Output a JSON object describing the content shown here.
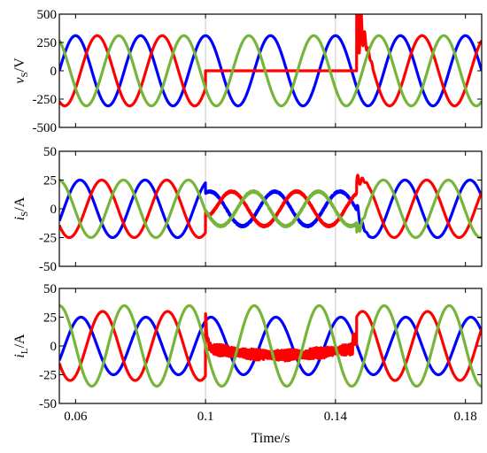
{
  "chart_data": [
    {
      "type": "line",
      "ylabel": "vS/V",
      "ylabel_main": "v",
      "ylabel_sub": "S",
      "ylabel_unit": "/V",
      "ylim": [
        -500,
        500
      ],
      "yticks": [
        -500,
        -250,
        0,
        250,
        500
      ],
      "xlim": [
        0.055,
        0.185
      ],
      "grid": "vertical at 0.1 and 0.14",
      "series": [
        {
          "color": "#0000ff",
          "amplitude": 310,
          "phase_deg": 90,
          "events": "unchanged"
        },
        {
          "color": "#ff0000",
          "amplitude": 310,
          "phase_deg": -30,
          "events": "drops to 0 for 0.1 to 0.1465; transient spike to about 500 at 0.147"
        },
        {
          "color": "#77b53a",
          "amplitude": 310,
          "phase_deg": 210,
          "events": "unchanged"
        }
      ]
    },
    {
      "type": "line",
      "ylabel": "iS/A",
      "ylabel_main": "i",
      "ylabel_sub": "S",
      "ylabel_unit": "/A",
      "ylim": [
        -50,
        50
      ],
      "yticks": [
        -50,
        -25,
        0,
        25,
        50
      ],
      "xlim": [
        0.055,
        0.185
      ],
      "series": [
        {
          "color": "#0000ff",
          "amplitude": 25,
          "phase_deg": 65,
          "fault_amplitude": 15
        },
        {
          "color": "#ff0000",
          "amplitude": 25,
          "phase_deg": -55,
          "fault_amplitude": 15
        },
        {
          "color": "#77b53a",
          "amplitude": 25,
          "phase_deg": 185,
          "fault_amplitude": 15
        }
      ]
    },
    {
      "type": "line",
      "ylabel": "iL/A",
      "ylabel_main": "i",
      "ylabel_sub": "L",
      "ylabel_unit": "/A",
      "ylim": [
        -50,
        50
      ],
      "yticks": [
        -50,
        -25,
        0,
        25,
        50
      ],
      "xlim": [
        0.055,
        0.185
      ],
      "series": [
        {
          "color": "#0000ff",
          "amplitude": 25,
          "phase_deg": 60
        },
        {
          "color": "#ff0000",
          "amplitude": 30,
          "phase_deg": -60,
          "events": "about -10 to +5 with ripple for 0.1 to 0.1465"
        },
        {
          "color": "#77b53a",
          "amplitude": 35,
          "phase_deg": 180
        }
      ]
    }
  ],
  "x_axis": {
    "label": "Time/s",
    "ticks": [
      0.06,
      0.1,
      0.14,
      0.18
    ],
    "tick_labels": [
      "0.06",
      "0.1",
      "0.14",
      "0.18"
    ]
  },
  "frequency_hz": 50,
  "fault_start": 0.1,
  "fault_end": 0.1465
}
